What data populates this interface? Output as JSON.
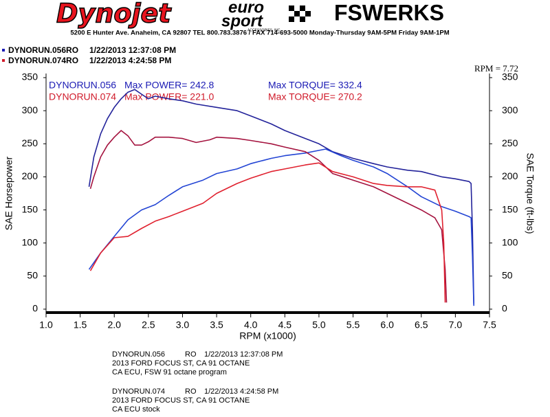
{
  "header": {
    "logo_left": "Dynojet",
    "logo_mid_top": "euro",
    "logo_mid_bottom": "sport",
    "logo_mid_small": "ACCESSORIES, INC",
    "logo_right": "FSWERKS",
    "address": "5200 E Hunter Ave. Anaheim, CA 92807 TEL 800.783.3876 / FAX 714-693-5000   Monday-Thursday 9AM-5PM  Friday 9AM-1PM"
  },
  "runs": [
    {
      "name": "DYNORUN.056RO",
      "date": "1/22/2013 12:37:08 PM",
      "color": "#1a1ab4"
    },
    {
      "name": "DYNORUN.074RO",
      "date": "1/22/2013 4:24:58 PM",
      "color": "#d01a2a"
    }
  ],
  "chart_data": {
    "type": "line",
    "xlabel": "RPM (x1000)",
    "ylabel": "SAE Horsepower",
    "y2label": "SAE Torque (ft-lbs)",
    "rpm_readout": "RPM = 7.72",
    "annotations": [
      {
        "run": "DYNORUN.056",
        "power": "Max POWER= 242.8",
        "torque": "Max TORQUE= 332.4",
        "color": "#1a1ab4"
      },
      {
        "run": "DYNORUN.074",
        "power": "Max POWER= 221.0",
        "torque": "Max TORQUE= 270.2",
        "color": "#d01a2a"
      }
    ],
    "xlim": [
      1,
      7.5
    ],
    "xticks": [
      {
        "value": 1,
        "label": "1.0"
      },
      1.5,
      {
        "value": 2,
        "label": "2.0"
      },
      2.5,
      {
        "value": 3,
        "label": "3.0"
      },
      3.5,
      {
        "value": 4,
        "label": "4.0"
      },
      4.5,
      {
        "value": 5,
        "label": "5.0"
      },
      5.5,
      {
        "value": 6,
        "label": "6.0"
      },
      6.5,
      {
        "value": 7,
        "label": "7.0"
      },
      7.5
    ],
    "ylim": [
      0,
      350
    ],
    "yticks": [
      0,
      50,
      100,
      150,
      200,
      250,
      300,
      350
    ],
    "y2lim": [
      0,
      350
    ],
    "y2ticks": [
      0,
      50,
      100,
      150,
      200,
      250,
      300,
      350
    ],
    "series": [
      {
        "name": "DYNORUN.056 torque",
        "color": "#22229a",
        "axis": "y2",
        "x": [
          1.63,
          1.7,
          1.8,
          1.9,
          2.0,
          2.1,
          2.2,
          2.3,
          2.4,
          2.5,
          2.6,
          2.8,
          3.0,
          3.2,
          3.5,
          3.8,
          4.0,
          4.3,
          4.5,
          4.8,
          5.0,
          5.2,
          5.5,
          5.8,
          6.0,
          6.3,
          6.5,
          6.8,
          7.0,
          7.2,
          7.23,
          7.25,
          7.27
        ],
        "values": [
          185,
          230,
          265,
          288,
          305,
          318,
          328,
          332,
          325,
          318,
          322,
          318,
          315,
          310,
          305,
          300,
          292,
          280,
          270,
          258,
          250,
          238,
          228,
          220,
          215,
          210,
          208,
          200,
          197,
          193,
          190,
          120,
          8
        ]
      },
      {
        "name": "DYNORUN.056 power",
        "color": "#2244d4",
        "x": [
          1.63,
          1.8,
          2.0,
          2.2,
          2.4,
          2.6,
          2.8,
          3.0,
          3.3,
          3.5,
          3.8,
          4.0,
          4.3,
          4.5,
          4.8,
          5.0,
          5.1,
          5.3,
          5.5,
          5.8,
          6.0,
          6.3,
          6.5,
          6.8,
          7.0,
          7.2,
          7.23,
          7.25,
          7.27
        ],
        "values": [
          60,
          85,
          110,
          135,
          150,
          158,
          172,
          185,
          195,
          205,
          212,
          220,
          228,
          232,
          236,
          240,
          242,
          233,
          225,
          215,
          205,
          185,
          170,
          155,
          148,
          140,
          138,
          80,
          5
        ]
      },
      {
        "name": "DYNORUN.074 torque",
        "color": "#a4123e",
        "axis": "y2",
        "x": [
          1.65,
          1.7,
          1.8,
          1.9,
          2.0,
          2.1,
          2.2,
          2.3,
          2.4,
          2.5,
          2.6,
          2.8,
          3.0,
          3.2,
          3.4,
          3.5,
          3.8,
          4.0,
          4.3,
          4.5,
          4.8,
          5.0,
          5.2,
          5.5,
          5.8,
          6.0,
          6.3,
          6.5,
          6.7,
          6.8,
          6.85,
          6.87
        ],
        "values": [
          182,
          200,
          230,
          248,
          260,
          270,
          262,
          248,
          248,
          253,
          260,
          260,
          258,
          252,
          256,
          260,
          258,
          255,
          250,
          245,
          238,
          225,
          205,
          195,
          185,
          175,
          160,
          150,
          138,
          120,
          60,
          10
        ]
      },
      {
        "name": "DYNORUN.074 power",
        "color": "#e0202e",
        "x": [
          1.65,
          1.8,
          2.0,
          2.2,
          2.4,
          2.6,
          2.8,
          3.0,
          3.3,
          3.5,
          3.8,
          4.0,
          4.3,
          4.5,
          4.8,
          5.0,
          5.2,
          5.5,
          5.8,
          6.0,
          6.3,
          6.5,
          6.7,
          6.8,
          6.83,
          6.85
        ],
        "values": [
          58,
          85,
          108,
          110,
          122,
          133,
          140,
          148,
          160,
          175,
          190,
          198,
          208,
          212,
          218,
          221,
          208,
          200,
          190,
          187,
          185,
          185,
          180,
          150,
          100,
          10
        ]
      }
    ]
  },
  "footer": [
    {
      "name": "DYNORUN.056",
      "code": "RO",
      "date": "1/22/2013 12:37:08 PM",
      "lines": [
        "2013 FORD FOCUS ST, CA 91 OCTANE",
        "CA ECU, FSW 91 octane program"
      ]
    },
    {
      "name": "DYNORUN.074",
      "code": "RO",
      "date": "1/22/2013 4:24:58 PM",
      "lines": [
        "2013 FORD FOCUS ST, CA 91 OCTANE",
        "CA ECU stock"
      ]
    }
  ]
}
